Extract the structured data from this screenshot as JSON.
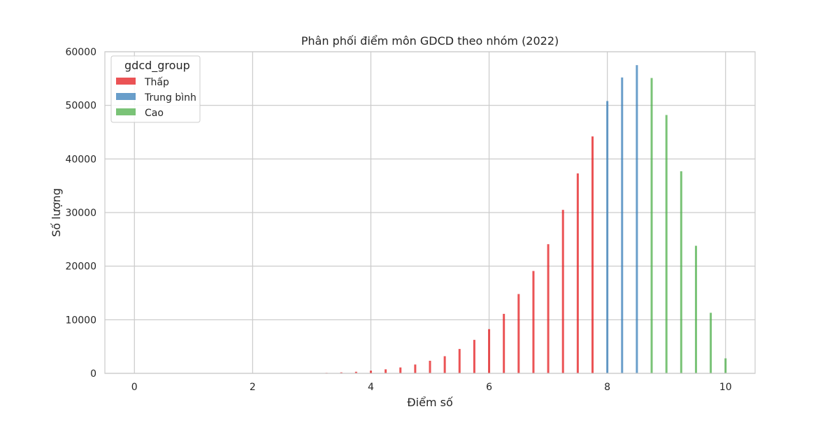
{
  "chart_data": {
    "type": "bar",
    "title": "Phân phối điểm môn GDCD theo nhóm (2022)",
    "xlabel": "Điểm số",
    "ylabel": "Số lượng",
    "xlim": [
      -0.5,
      10.5
    ],
    "ylim": [
      0,
      60000
    ],
    "xticks": [
      0,
      2,
      4,
      6,
      8,
      10
    ],
    "yticks": [
      0,
      10000,
      20000,
      30000,
      40000,
      50000,
      60000
    ],
    "xtick_labels": [
      "0",
      "2",
      "4",
      "6",
      "8",
      "10"
    ],
    "ytick_labels": [
      "0",
      "10000",
      "20000",
      "30000",
      "40000",
      "50000",
      "60000"
    ],
    "grid": true,
    "legend": {
      "title": "gdcd_group",
      "placement": "top-left",
      "entries": [
        "Thấp",
        "Trung bình",
        "Cao"
      ]
    },
    "series": [
      {
        "name": "Thấp",
        "color": "#e41a1c",
        "x": [
          0.25,
          0.5,
          0.75,
          1.0,
          1.25,
          1.5,
          1.75,
          2.0,
          2.25,
          2.5,
          2.75,
          3.0,
          3.25,
          3.5,
          3.75,
          4.0,
          4.25,
          4.5,
          4.75,
          5.0,
          5.25,
          5.5,
          5.75,
          6.0,
          6.25,
          6.5,
          6.75,
          7.0,
          7.25,
          7.5,
          7.75
        ],
        "values": [
          2,
          2,
          3,
          4,
          5,
          6,
          8,
          10,
          15,
          25,
          40,
          60,
          100,
          180,
          300,
          500,
          750,
          1100,
          1650,
          2350,
          3200,
          4550,
          6250,
          8250,
          11100,
          14800,
          19100,
          24100,
          30500,
          37300,
          44200
        ]
      },
      {
        "name": "Trung bình",
        "color": "#377eb8",
        "x": [
          8.0,
          8.25,
          8.5
        ],
        "values": [
          50800,
          55200,
          57500
        ]
      },
      {
        "name": "Cao",
        "color": "#4daf4a",
        "x": [
          8.75,
          9.0,
          9.25,
          9.5,
          9.75,
          10.0
        ],
        "values": [
          55100,
          48200,
          37700,
          23800,
          11300,
          2800
        ]
      }
    ]
  }
}
